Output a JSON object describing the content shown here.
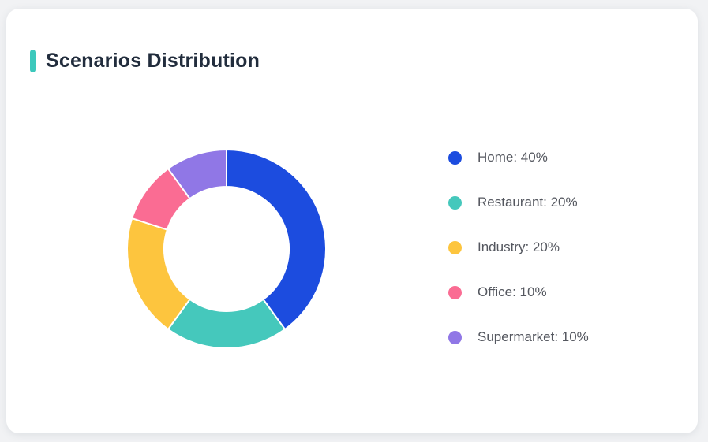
{
  "page": {
    "background_color": "#f1f2f4"
  },
  "card": {
    "title": "Scenarios Distribution",
    "accent_color": "#3cc8bc",
    "background_color": "#ffffff"
  },
  "chart_data": {
    "type": "pie",
    "subtype": "donut",
    "title": "Scenarios Distribution",
    "categories": [
      "Home",
      "Restaurant",
      "Industry",
      "Office",
      "Supermarket"
    ],
    "values": [
      40,
      20,
      20,
      10,
      10
    ],
    "unit": "%",
    "colors": [
      "#1c4cdf",
      "#45c8bc",
      "#fdc53e",
      "#fa6c93",
      "#9077e6"
    ],
    "start_angle_deg": 0,
    "direction": "clockwise",
    "inner_radius_ratio": 0.62,
    "gap_stroke_color": "#ffffff",
    "legend_position": "right",
    "legend": [
      {
        "label": "Home: 40%",
        "color": "#1c4cdf"
      },
      {
        "label": "Restaurant: 20%",
        "color": "#45c8bc"
      },
      {
        "label": "Industry: 20%",
        "color": "#fdc53e"
      },
      {
        "label": "Office: 10%",
        "color": "#fa6c93"
      },
      {
        "label": "Supermarket: 10%",
        "color": "#9077e6"
      }
    ]
  }
}
